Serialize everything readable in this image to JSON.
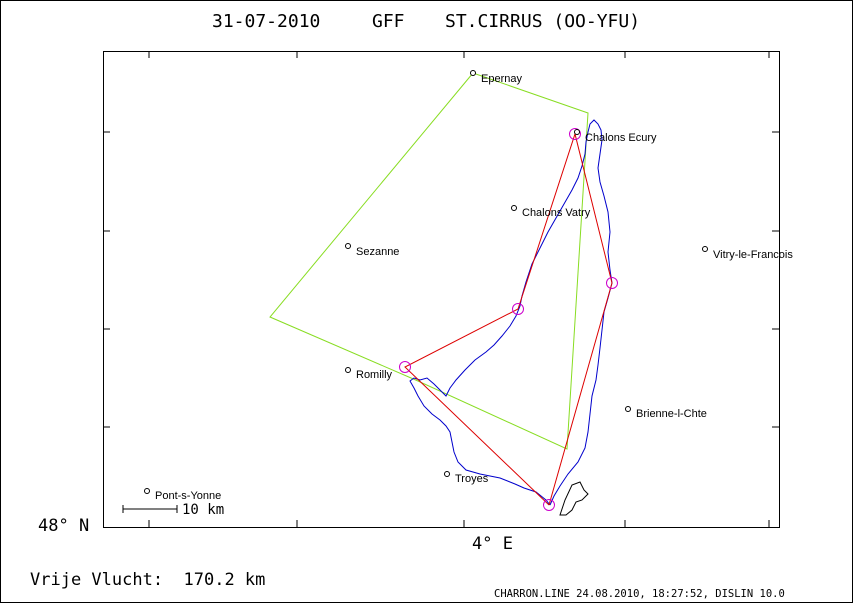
{
  "header": {
    "date": "31-07-2010",
    "club": "GFF",
    "aircraft": "ST.CIRRUS (OO-YFU)"
  },
  "axes": {
    "lat_label": "48° N",
    "lon_label": "4° E"
  },
  "scale_bar": {
    "label": "10 km"
  },
  "footer": {
    "distance": "Vrije Vlucht:  170.2 km",
    "credit": "CHARRON.LINE 24.08.2010, 18:27:52, DISLIN 10.0"
  },
  "places": [
    {
      "name": "Epernay"
    },
    {
      "name": "Chalons Ecury"
    },
    {
      "name": "Chalons Vatry"
    },
    {
      "name": "Sezanne"
    },
    {
      "name": "Vitry-le-Francois"
    },
    {
      "name": "Romilly"
    },
    {
      "name": "Brienne-l-Chte"
    },
    {
      "name": "Troyes"
    },
    {
      "name": "Pont-s-Yonne"
    }
  ],
  "colors": {
    "frame": "#000000",
    "track": "#0000cc",
    "task_green": "#88dd22",
    "task_red": "#dd0000",
    "turnpoint": "#cc00cc"
  }
}
